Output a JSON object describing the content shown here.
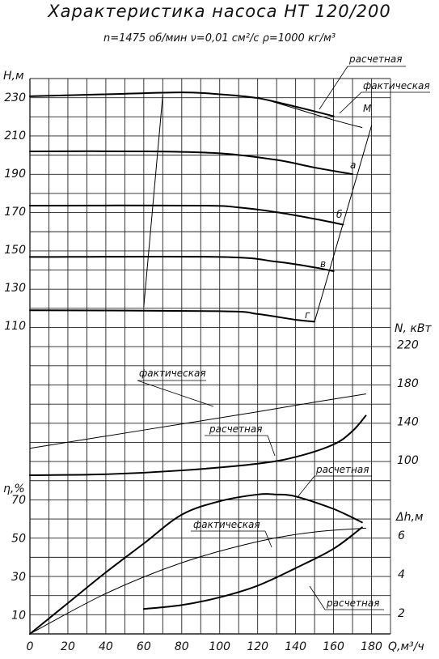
{
  "title": "Характеристика насоса НТ 120/200",
  "subtitle": "n=1475 об/мин   ν=0,01 см²/с   ρ=1000 кг/м³",
  "axes": {
    "x_label": "Q,м³/ч",
    "h_label": "Н,м",
    "n_label": "N, кВт",
    "eta_label": "η,%",
    "dh_label": "Δh,м"
  },
  "chart_data": [
    {
      "type": "line",
      "ylabel": "Н,м",
      "xlabel": "Q,м³/ч",
      "xlim": [
        0,
        180
      ],
      "ylim": [
        110,
        230
      ],
      "x_ticks": [
        "0",
        "20",
        "40",
        "60",
        "80",
        "100",
        "120",
        "140",
        "160",
        "180"
      ],
      "y_ticks": [
        "110",
        "130",
        "150",
        "170",
        "190",
        "210",
        "230"
      ],
      "series": [
        {
          "name": "расчетная",
          "points": [
            [
              0,
              230.5
            ],
            [
              40,
              231.5
            ],
            [
              80,
              232.5
            ],
            [
              100,
              231.5
            ],
            [
              120,
              229.5
            ],
            [
              140,
              225
            ],
            [
              160,
              220
            ]
          ]
        },
        {
          "name": "фактическая",
          "points": [
            [
              120,
              230
            ],
            [
              140,
              224
            ],
            [
              160,
              218
            ],
            [
              175,
              214
            ]
          ]
        },
        {
          "name": "а",
          "points": [
            [
              0,
              201.5
            ],
            [
              60,
              201.5
            ],
            [
              100,
              200.5
            ],
            [
              130,
              197
            ],
            [
              150,
              193
            ],
            [
              170,
              189.5
            ]
          ]
        },
        {
          "name": "б",
          "points": [
            [
              0,
              173
            ],
            [
              90,
              173
            ],
            [
              110,
              172
            ],
            [
              130,
              169.5
            ],
            [
              150,
              166
            ],
            [
              165,
              163
            ]
          ]
        },
        {
          "name": "в",
          "points": [
            [
              0,
              146
            ],
            [
              100,
              146
            ],
            [
              130,
              143.5
            ],
            [
              150,
              140.5
            ],
            [
              160,
              138.5
            ]
          ]
        },
        {
          "name": "г",
          "points": [
            [
              0,
              118
            ],
            [
              100,
              117.5
            ],
            [
              120,
              116
            ],
            [
              140,
              113
            ],
            [
              150,
              112
            ]
          ]
        },
        {
          "name": "М",
          "points": [
            [
              60,
              120
            ],
            [
              70,
              231
            ]
          ]
        },
        {
          "name": "",
          "points": [
            [
              150,
              112
            ],
            [
              180,
              215
            ]
          ]
        }
      ],
      "annotations": [
        "расчетная",
        "фактическая",
        "М",
        "а",
        "б",
        "в",
        "г"
      ]
    },
    {
      "type": "line",
      "ylabel": "N, кВт",
      "ylim": [
        100,
        220
      ],
      "y_ticks": [
        "100",
        "140",
        "180",
        "220"
      ],
      "series": [
        {
          "name": "фактическая",
          "points": [
            [
              0,
              112
            ],
            [
              60,
              131
            ],
            [
              120,
              150
            ],
            [
              150,
              160
            ],
            [
              177,
              168.5
            ]
          ]
        },
        {
          "name": "расчетная",
          "points": [
            [
              0,
              84
            ],
            [
              40,
              85
            ],
            [
              80,
              89
            ],
            [
              120,
              96
            ],
            [
              140,
              103
            ],
            [
              160,
              116
            ],
            [
              170,
              130
            ],
            [
              177,
              146
            ]
          ]
        }
      ]
    },
    {
      "type": "line",
      "ylabel": "η,%",
      "ylim": [
        0,
        70
      ],
      "y_ticks": [
        "10",
        "30",
        "50",
        "70"
      ],
      "series": [
        {
          "name": "расчетная",
          "points": [
            [
              0,
              0
            ],
            [
              20,
              16
            ],
            [
              40,
              32
            ],
            [
              60,
              47
            ],
            [
              80,
              62
            ],
            [
              100,
              69
            ],
            [
              120,
              72.5
            ],
            [
              130,
              72.5
            ],
            [
              140,
              71.5
            ],
            [
              160,
              65
            ],
            [
              175,
              58
            ]
          ]
        },
        {
          "name": "фактическая",
          "points": [
            [
              0,
              0
            ],
            [
              40,
              21
            ],
            [
              80,
              37
            ],
            [
              120,
              48
            ],
            [
              150,
              53
            ],
            [
              177,
              55
            ]
          ]
        }
      ]
    },
    {
      "type": "line",
      "ylabel": "Δh,м",
      "ylim": [
        0,
        8
      ],
      "y_ticks": [
        "2",
        "4",
        "6"
      ],
      "series": [
        {
          "name": "расчетная",
          "points": [
            [
              60,
              2.2
            ],
            [
              80,
              2.4
            ],
            [
              100,
              2.8
            ],
            [
              120,
              3.4
            ],
            [
              140,
              4.3
            ],
            [
              160,
              5.3
            ],
            [
              175,
              6.4
            ]
          ]
        }
      ]
    }
  ]
}
